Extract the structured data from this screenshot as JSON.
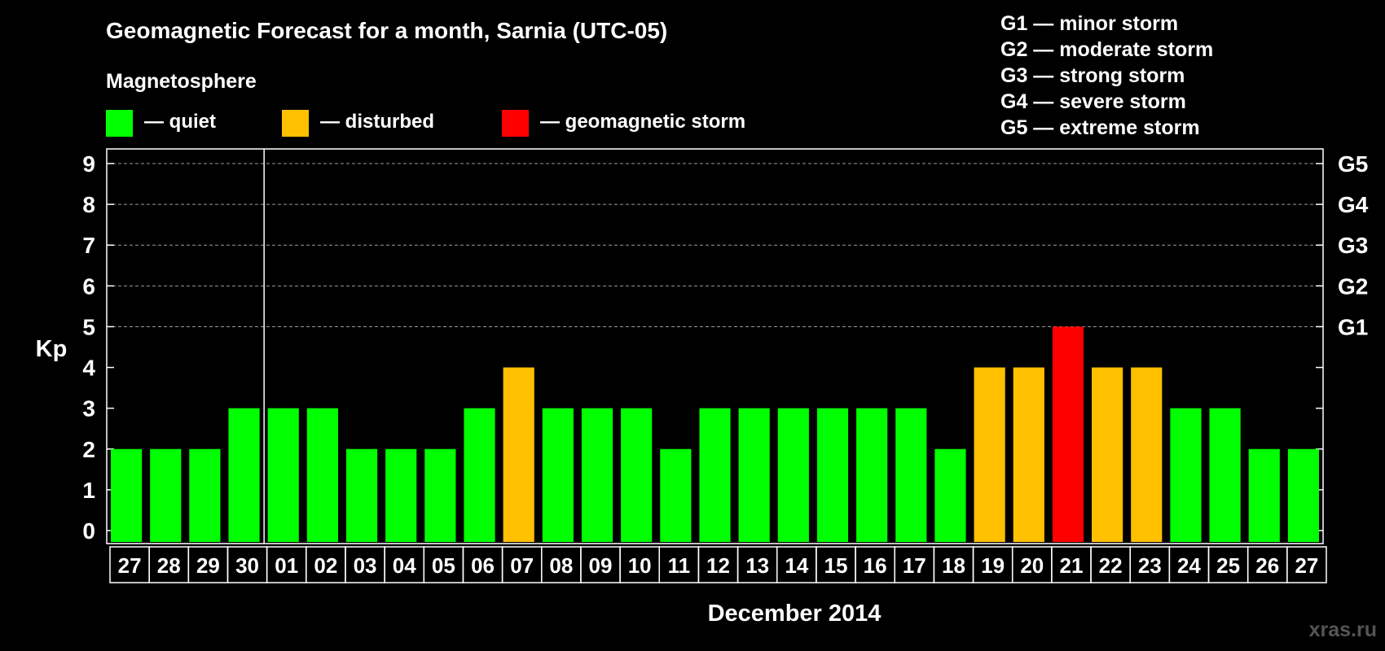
{
  "chart_data": {
    "type": "bar",
    "title": "Geomagnetic Forecast for a month, Sarnia (UTC-05)",
    "legend_title": "Magnetosphere",
    "legend": [
      {
        "label": "— quiet",
        "color": "#00ff00"
      },
      {
        "label": "— disturbed",
        "color": "#ffc000"
      },
      {
        "label": "— geomagnetic storm",
        "color": "#ff0000"
      }
    ],
    "storm_scale": [
      "G1 — minor storm",
      "G2 — moderate storm",
      "G3 — strong storm",
      "G4 — severe storm",
      "G5 — extreme storm"
    ],
    "ylabel": "Kp",
    "xlabel": "December 2014",
    "ylim": [
      0,
      9
    ],
    "yticks": [
      "0",
      "1",
      "2",
      "3",
      "4",
      "5",
      "6",
      "7",
      "8",
      "9"
    ],
    "right_axis": [
      {
        "value": 5,
        "label": "G1"
      },
      {
        "value": 6,
        "label": "G2"
      },
      {
        "value": 7,
        "label": "G3"
      },
      {
        "value": 8,
        "label": "G4"
      },
      {
        "value": 9,
        "label": "G5"
      }
    ],
    "categories": [
      "27",
      "28",
      "29",
      "30",
      "01",
      "02",
      "03",
      "04",
      "05",
      "06",
      "07",
      "08",
      "09",
      "10",
      "11",
      "12",
      "13",
      "14",
      "15",
      "16",
      "17",
      "18",
      "19",
      "20",
      "21",
      "22",
      "23",
      "24",
      "25",
      "26",
      "27"
    ],
    "values": [
      2,
      2,
      2,
      3,
      3,
      3,
      2,
      2,
      2,
      3,
      4,
      3,
      3,
      3,
      2,
      3,
      3,
      3,
      3,
      3,
      3,
      2,
      4,
      4,
      5,
      4,
      4,
      3,
      3,
      2,
      2
    ],
    "status": [
      "quiet",
      "quiet",
      "quiet",
      "quiet",
      "quiet",
      "quiet",
      "quiet",
      "quiet",
      "quiet",
      "quiet",
      "disturbed",
      "quiet",
      "quiet",
      "quiet",
      "quiet",
      "quiet",
      "quiet",
      "quiet",
      "quiet",
      "quiet",
      "quiet",
      "quiet",
      "disturbed",
      "disturbed",
      "storm",
      "disturbed",
      "disturbed",
      "quiet",
      "quiet",
      "quiet",
      "quiet"
    ],
    "colors": {
      "quiet": "#00ff00",
      "disturbed": "#ffc000",
      "storm": "#ff0000"
    },
    "month_divider_after": "30"
  },
  "watermark": "xras.ru"
}
